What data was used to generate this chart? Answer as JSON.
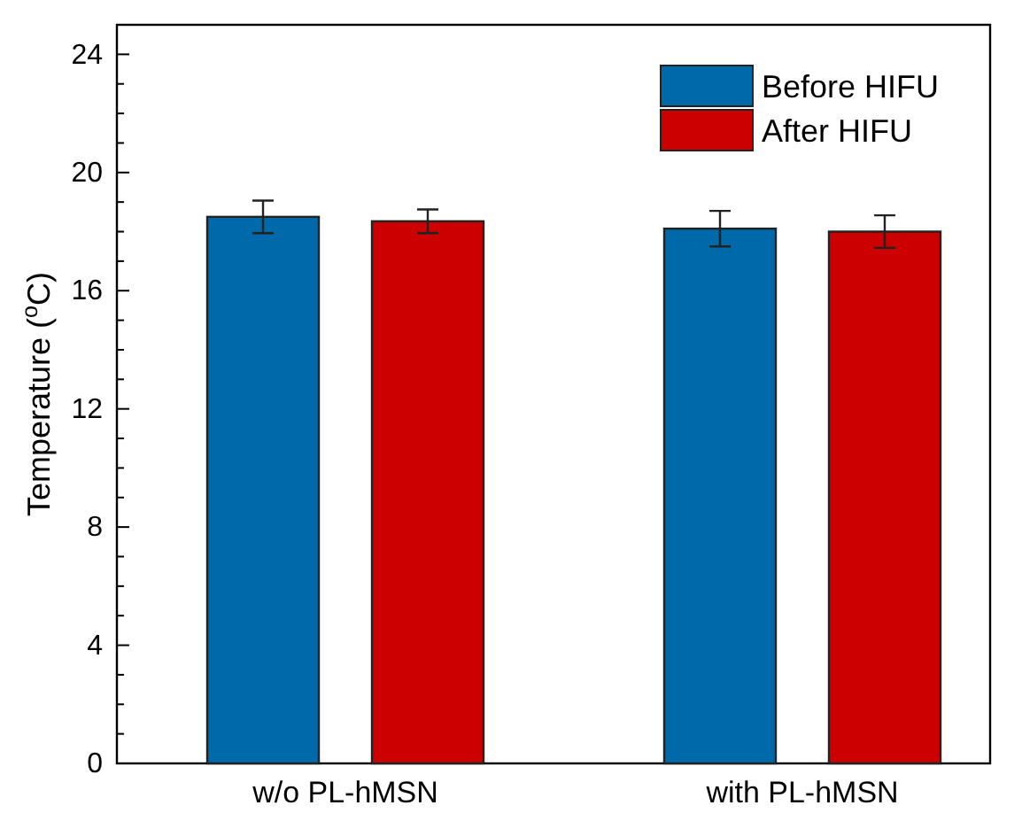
{
  "chart_data": {
    "type": "bar",
    "ylabel": "Temperature ($^{o}$C)",
    "categories": [
      "w/o PL-hMSN",
      "with PL-hMSN"
    ],
    "series": [
      {
        "name": "Before HIFU",
        "color": "#0069aa",
        "values": [
          18.5,
          18.1
        ],
        "errors": [
          0.55,
          0.6
        ]
      },
      {
        "name": "After HIFU",
        "color": "#cc0000",
        "values": [
          18.35,
          18.0
        ],
        "errors": [
          0.4,
          0.55
        ]
      }
    ],
    "ylim": [
      0,
      25
    ],
    "yticks": [
      0,
      {
        "value": 1,
        "label": null
      },
      {
        "value": 2,
        "label": null
      },
      {
        "value": 3,
        "label": null
      },
      4,
      {
        "value": 5,
        "label": null
      },
      {
        "value": 6,
        "label": null
      },
      {
        "value": 7,
        "label": null
      },
      8,
      {
        "value": 9,
        "label": null
      },
      {
        "value": 10,
        "label": null
      },
      {
        "value": 11,
        "label": null
      },
      12,
      {
        "value": 13,
        "label": null
      },
      {
        "value": 14,
        "label": null
      },
      {
        "value": 15,
        "label": null
      },
      16,
      {
        "value": 17,
        "label": null
      },
      {
        "value": 18,
        "label": null
      },
      {
        "value": 19,
        "label": null
      },
      20,
      {
        "value": 21,
        "label": null
      },
      {
        "value": 22,
        "label": null
      },
      {
        "value": 23,
        "label": null
      },
      24
    ],
    "legend": "top right",
    "grid": false
  }
}
